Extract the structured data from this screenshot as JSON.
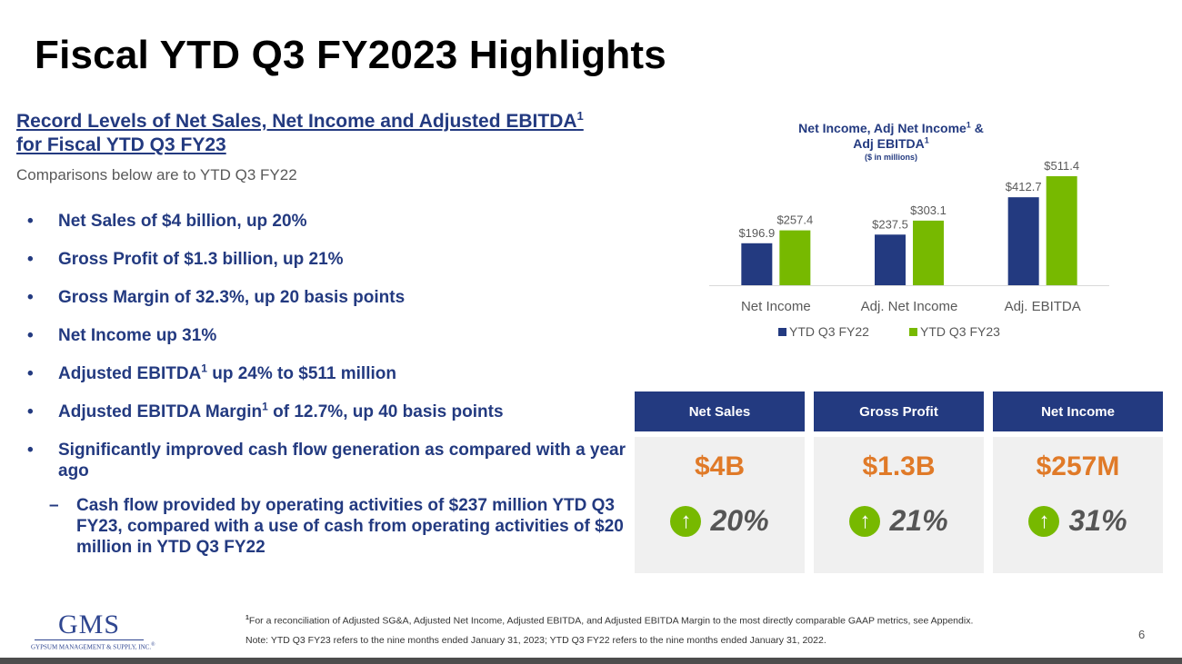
{
  "title": "Fiscal YTD Q3 FY2023 Highlights",
  "headline": {
    "line1": "Record Levels of Net Sales, Net Income and Adjusted EBITDA",
    "sup": "1",
    "line2": "for Fiscal YTD Q3 FY23"
  },
  "comparison_note": "Comparisons below are to YTD Q3 FY22",
  "bullets": [
    {
      "marker": "•",
      "text": "Net Sales of $4 billion, up 20%"
    },
    {
      "marker": "•",
      "text": "Gross Profit of $1.3 billion, up 21%"
    },
    {
      "marker": "•",
      "text": "Gross Margin of 32.3%, up 20 basis points"
    },
    {
      "marker": "•",
      "text": "Net Income up 31%"
    },
    {
      "marker": "•",
      "pre": "Adjusted EBITDA",
      "sup": "1",
      "post": " up 24% to $511 million"
    },
    {
      "marker": "•",
      "pre": "Adjusted EBITDA Margin",
      "sup": "1",
      "post": " of 12.7%, up 40 basis points"
    },
    {
      "marker": "•",
      "text": "Significantly improved cash flow generation as compared with a year ago"
    }
  ],
  "sub_bullet": {
    "marker": "–",
    "text": "Cash flow provided by operating activities of $237 million YTD Q3 FY23, compared with a use of cash from operating activities of $20 million in YTD Q3 FY22"
  },
  "chart_data": {
    "type": "bar",
    "title": {
      "line1_pre": "Net Income, Adj Net Income",
      "sup1": "1",
      "line1_post": " &",
      "line2_pre": "Adj EBITDA",
      "sup2": "1"
    },
    "subtitle": "($ in millions)",
    "categories": [
      "Net Income",
      "Adj. Net Income",
      "Adj. EBITDA"
    ],
    "series": [
      {
        "name": "YTD Q3 FY22",
        "values": [
          196.9,
          237.5,
          412.7
        ],
        "labels": [
          "$196.9",
          "$237.5",
          "$412.7"
        ],
        "color": "#233a80"
      },
      {
        "name": "YTD Q3 FY23",
        "values": [
          257.4,
          303.1,
          511.4
        ],
        "labels": [
          "$257.4",
          "$303.1",
          "$511.4"
        ],
        "color": "#77b900"
      }
    ],
    "ylim": [
      0,
      511.4
    ],
    "grid": false,
    "legend": "bottom"
  },
  "cards": [
    {
      "header": "Net Sales",
      "value": "$4B",
      "arrow": "↑",
      "change": "20%"
    },
    {
      "header": "Gross Profit",
      "value": "$1.3B",
      "arrow": "↑",
      "change": "21%"
    },
    {
      "header": "Net Income",
      "value": "$257M",
      "arrow": "↑",
      "change": "31%"
    }
  ],
  "logo": {
    "wordmark": "GMS",
    "tagline": "GYPSUM MANAGEMENT & SUPPLY, INC.",
    "mark": "®"
  },
  "footnote": {
    "sup": "1",
    "text": "For a reconciliation of Adjusted SG&A, Adjusted Net Income, Adjusted EBITDA, and Adjusted EBITDA Margin to the most directly comparable GAAP metrics, see Appendix."
  },
  "note": "Note:  YTD Q3 FY23 refers to the nine months ended January 31, 2023;  YTD Q3 FY22 refers to the nine months ended January 31, 2022.",
  "page_number": "6",
  "colors": {
    "navy": "#233a80",
    "green": "#77b900",
    "orange": "#e07a28",
    "card_bg": "#f0f0f0"
  }
}
